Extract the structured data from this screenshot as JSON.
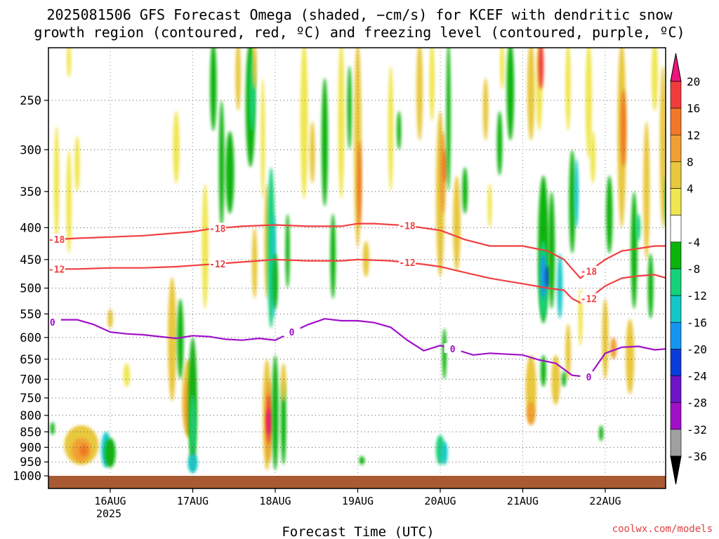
{
  "chart_data": {
    "type": "heatmap",
    "title_line1": "2025081506 GFS Forecast Omega (shaded, −cm/s) for KCEF with dendritic snow",
    "title_line2": "growth region (contoured, red, ºC) and freezing level (contoured, purple, ºC)",
    "xlabel": "Forecast Time (UTC)",
    "watermark": "coolwx.com/models",
    "x_ticks": [
      {
        "label": "16AUG",
        "day": 16
      },
      {
        "label": "17AUG",
        "day": 17
      },
      {
        "label": "18AUG",
        "day": 18
      },
      {
        "label": "19AUG",
        "day": 19
      },
      {
        "label": "20AUG",
        "day": 20
      },
      {
        "label": "21AUG",
        "day": 21
      },
      {
        "label": "22AUG",
        "day": 22
      }
    ],
    "x_year_label": "2025",
    "xlim_days": [
      15.04,
      22.79
    ],
    "y_ticks": [
      250,
      300,
      350,
      400,
      450,
      500,
      550,
      600,
      650,
      700,
      750,
      800,
      850,
      900,
      950,
      1000
    ],
    "ylim_hpa": [
      200,
      1020
    ],
    "y_scale": "log",
    "colorbar": {
      "labels": [
        "20",
        "16",
        "12",
        "8",
        "4",
        "-4",
        "-8",
        "-12",
        "-16",
        "-20",
        "-24",
        "-28",
        "-32",
        "-36"
      ],
      "colors": [
        "#f0157a",
        "#f03c3c",
        "#f07828",
        "#f0a032",
        "#e8c83c",
        "#f0e650",
        "#ffffff",
        "#0ab40a",
        "#14d27a",
        "#14c8c8",
        "#1496f0",
        "#0a3cdc",
        "#6e14c8",
        "#a010c8",
        "#a0a0a0",
        "#000000"
      ]
    },
    "contours": [
      {
        "label": "-18",
        "color": "#f04040",
        "points": [
          [
            15.04,
            418
          ],
          [
            15.3,
            418
          ],
          [
            15.6,
            416
          ],
          [
            16,
            414
          ],
          [
            16.4,
            412
          ],
          [
            16.8,
            408
          ],
          [
            17,
            406
          ],
          [
            17.2,
            402
          ],
          [
            17.6,
            398
          ],
          [
            18,
            396
          ],
          [
            18.4,
            398
          ],
          [
            18.8,
            398
          ],
          [
            19,
            394
          ],
          [
            19.2,
            394
          ],
          [
            19.6,
            397
          ],
          [
            20,
            404
          ],
          [
            20.3,
            418
          ],
          [
            20.6,
            428
          ],
          [
            21,
            428
          ],
          [
            21.3,
            436
          ],
          [
            21.5,
            450
          ],
          [
            21.6,
            466
          ],
          [
            21.7,
            482
          ],
          [
            21.8,
            470
          ],
          [
            22,
            450
          ],
          [
            22.2,
            436
          ],
          [
            22.4,
            432
          ],
          [
            22.6,
            428
          ],
          [
            22.79,
            428
          ]
        ]
      },
      {
        "label": "-12",
        "color": "#f04040",
        "points": [
          [
            15.04,
            466
          ],
          [
            15.3,
            466
          ],
          [
            15.6,
            466
          ],
          [
            16,
            464
          ],
          [
            16.4,
            464
          ],
          [
            16.8,
            462
          ],
          [
            17,
            460
          ],
          [
            17.4,
            456
          ],
          [
            17.8,
            452
          ],
          [
            18,
            450
          ],
          [
            18.4,
            452
          ],
          [
            18.8,
            452
          ],
          [
            19,
            450
          ],
          [
            19.4,
            452
          ],
          [
            19.8,
            458
          ],
          [
            20,
            462
          ],
          [
            20.3,
            472
          ],
          [
            20.6,
            482
          ],
          [
            21,
            492
          ],
          [
            21.3,
            500
          ],
          [
            21.5,
            504
          ],
          [
            21.6,
            520
          ],
          [
            21.7,
            528
          ],
          [
            21.8,
            520
          ],
          [
            22,
            496
          ],
          [
            22.2,
            482
          ],
          [
            22.4,
            478
          ],
          [
            22.6,
            476
          ],
          [
            22.79,
            484
          ]
        ]
      },
      {
        "label": "0",
        "color": "#a010c8",
        "points": [
          [
            15.04,
            582
          ],
          [
            15.2,
            572
          ],
          [
            15.4,
            562
          ],
          [
            15.6,
            562
          ],
          [
            15.8,
            572
          ],
          [
            16,
            588
          ],
          [
            16.2,
            592
          ],
          [
            16.4,
            594
          ],
          [
            16.6,
            598
          ],
          [
            16.8,
            602
          ],
          [
            17,
            596
          ],
          [
            17.2,
            598
          ],
          [
            17.4,
            604
          ],
          [
            17.6,
            606
          ],
          [
            17.8,
            602
          ],
          [
            18,
            606
          ],
          [
            18.2,
            588
          ],
          [
            18.4,
            572
          ],
          [
            18.6,
            560
          ],
          [
            18.8,
            564
          ],
          [
            19,
            564
          ],
          [
            19.2,
            568
          ],
          [
            19.4,
            578
          ],
          [
            19.6,
            606
          ],
          [
            19.8,
            630
          ],
          [
            20,
            618
          ],
          [
            20.2,
            628
          ],
          [
            20.4,
            640
          ],
          [
            20.6,
            636
          ],
          [
            21,
            640
          ],
          [
            21.2,
            652
          ],
          [
            21.4,
            660
          ],
          [
            21.6,
            690
          ],
          [
            21.8,
            694
          ],
          [
            22,
            636
          ],
          [
            22.2,
            622
          ],
          [
            22.4,
            620
          ],
          [
            22.6,
            628
          ],
          [
            22.79,
            625
          ]
        ]
      }
    ],
    "ground_label": "",
    "grid": "dotted"
  }
}
